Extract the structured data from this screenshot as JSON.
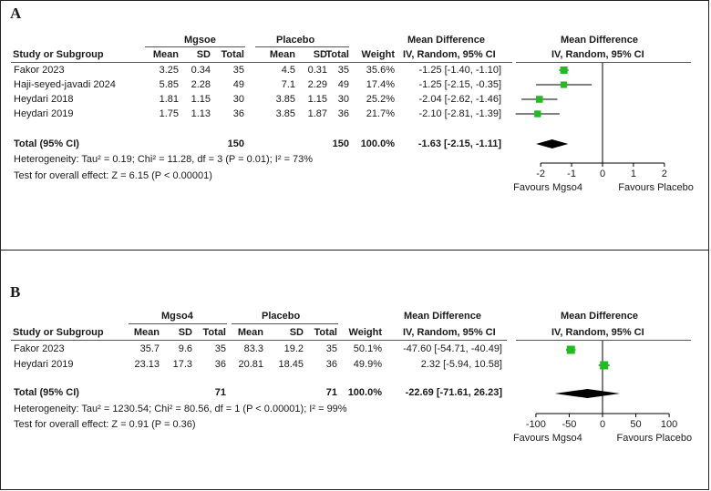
{
  "panels": [
    {
      "label": "A",
      "headers": {
        "group1": "Mgsoe",
        "group2": "Placebo",
        "study": "Study or Subgroup",
        "mean1": "Mean",
        "sd1": "SD",
        "total1": "Total",
        "mean2": "Mean",
        "sd2": "SD",
        "total2": "Total",
        "weight": "Weight",
        "md_title": "Mean Difference",
        "md_sub": "IV, Random, 95% CI",
        "plot_title": "Mean Difference",
        "plot_sub": "IV, Random, 95% CI"
      },
      "rows": [
        {
          "study": "Fakor 2023",
          "mean1": "3.25",
          "sd1": "0.34",
          "total1": "35",
          "mean2": "4.5",
          "sd2": "0.31",
          "total2": "35",
          "weight": "35.6%",
          "ci": "-1.25 [-1.40, -1.10]"
        },
        {
          "study": "Haji-seyed-javadi 2024",
          "mean1": "5.85",
          "sd1": "2.28",
          "total1": "49",
          "mean2": "7.1",
          "sd2": "2.29",
          "total2": "49",
          "weight": "17.4%",
          "ci": "-1.25 [-2.15, -0.35]"
        },
        {
          "study": "Heydari 2018",
          "mean1": "1.81",
          "sd1": "1.15",
          "total1": "30",
          "mean2": "3.85",
          "sd2": "1.15",
          "total2": "30",
          "weight": "25.2%",
          "ci": "-2.04 [-2.62, -1.46]"
        },
        {
          "study": "Heydari 2019",
          "mean1": "1.75",
          "sd1": "1.13",
          "total1": "36",
          "mean2": "3.85",
          "sd2": "1.87",
          "total2": "36",
          "weight": "21.7%",
          "ci": "-2.10 [-2.81, -1.39]"
        }
      ],
      "total": {
        "label": "Total (95% CI)",
        "total1": "150",
        "total2": "150",
        "weight": "100.0%",
        "ci": "-1.63 [-2.15, -1.11]"
      },
      "heterogeneity": "Heterogeneity: Tau² = 0.19; Chi² = 11.28, df = 3 (P = 0.01); I² = 73%",
      "overall": "Test for overall effect: Z = 6.15 (P < 0.00001)",
      "axis": {
        "left_label": "Favours Mgso4",
        "right_label": "Favours Placebo",
        "ticks": [
          "-2",
          "-1",
          "0",
          "1",
          "2"
        ]
      }
    },
    {
      "label": "B",
      "headers": {
        "group1": "Mgso4",
        "group2": "Placebo",
        "study": "Study or Subgroup",
        "mean1": "Mean",
        "sd1": "SD",
        "total1": "Total",
        "mean2": "Mean",
        "sd2": "SD",
        "total2": "Total",
        "weight": "Weight",
        "md_title": "Mean Difference",
        "md_sub": "IV, Random, 95% CI",
        "plot_title": "Mean Difference",
        "plot_sub": "IV, Random, 95% CI"
      },
      "rows": [
        {
          "study": "Fakor 2023",
          "mean1": "35.7",
          "sd1": "9.6",
          "total1": "35",
          "mean2": "83.3",
          "sd2": "19.2",
          "total2": "35",
          "weight": "50.1%",
          "ci": "-47.60 [-54.71, -40.49]"
        },
        {
          "study": "Heydari 2019",
          "mean1": "23.13",
          "sd1": "17.3",
          "total1": "36",
          "mean2": "20.81",
          "sd2": "18.45",
          "total2": "36",
          "weight": "49.9%",
          "ci": "2.32 [-5.94, 10.58]"
        }
      ],
      "total": {
        "label": "Total (95% CI)",
        "total1": "71",
        "total2": "71",
        "weight": "100.0%",
        "ci": "-22.69 [-71.61, 26.23]"
      },
      "heterogeneity": "Heterogeneity: Tau² = 1230.54; Chi² = 80.56, df = 1 (P < 0.00001); I² = 99%",
      "overall": "Test for overall effect: Z = 0.91 (P = 0.36)",
      "axis": {
        "left_label": "Favours Mgso4",
        "right_label": "Favours Placebo",
        "ticks": [
          "-100",
          "-50",
          "0",
          "50",
          "100"
        ]
      }
    }
  ],
  "colors": {
    "square": "#1fbd1f",
    "diamond": "#000000",
    "line": "#000000"
  },
  "chart_data": [
    {
      "type": "forest",
      "title": "Mean Difference (IV, Random, 95% CI)",
      "xlabel_left": "Favours Mgso4",
      "xlabel_right": "Favours Placebo",
      "xlim": [
        -2.8,
        2.8
      ],
      "ticks": [
        -2,
        -1,
        0,
        1,
        2
      ],
      "studies": [
        {
          "name": "Fakor 2023",
          "md": -1.25,
          "lo": -1.4,
          "hi": -1.1,
          "weight": 35.6
        },
        {
          "name": "Haji-seyed-javadi 2024",
          "md": -1.25,
          "lo": -2.15,
          "hi": -0.35,
          "weight": 17.4
        },
        {
          "name": "Heydari 2018",
          "md": -2.04,
          "lo": -2.62,
          "hi": -1.46,
          "weight": 25.2
        },
        {
          "name": "Heydari 2019",
          "md": -2.1,
          "lo": -2.81,
          "hi": -1.39,
          "weight": 21.7
        }
      ],
      "pooled": {
        "md": -1.63,
        "lo": -2.15,
        "hi": -1.11
      }
    },
    {
      "type": "forest",
      "title": "Mean Difference (IV, Random, 95% CI)",
      "xlabel_left": "Favours Mgso4",
      "xlabel_right": "Favours Placebo",
      "xlim": [
        -130,
        130
      ],
      "ticks": [
        -100,
        -50,
        0,
        50,
        100
      ],
      "studies": [
        {
          "name": "Fakor 2023",
          "md": -47.6,
          "lo": -54.71,
          "hi": -40.49,
          "weight": 50.1
        },
        {
          "name": "Heydari 2019",
          "md": 2.32,
          "lo": -5.94,
          "hi": 10.58,
          "weight": 49.9
        }
      ],
      "pooled": {
        "md": -22.69,
        "lo": -71.61,
        "hi": 26.23
      }
    }
  ]
}
